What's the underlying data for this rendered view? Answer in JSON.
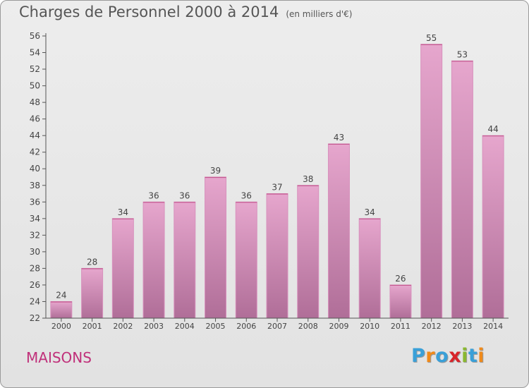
{
  "header": {
    "title": "Charges de Personnel 2000 à 2014",
    "subtitle": "(en milliers d'€)"
  },
  "footer": {
    "commune": "MAISONS",
    "brand": {
      "text": "Proxiti",
      "letters": [
        {
          "ch": "P",
          "color": "#3aa0d8"
        },
        {
          "ch": "r",
          "color": "#f08a1a"
        },
        {
          "ch": "o",
          "color": "#3aa0d8"
        },
        {
          "ch": "x",
          "color": "#d8242a"
        },
        {
          "ch": "i",
          "color": "#8ab830"
        },
        {
          "ch": "t",
          "color": "#3aa0d8"
        },
        {
          "ch": "i",
          "color": "#f08a1a"
        }
      ]
    }
  },
  "chart_data": {
    "type": "bar",
    "title": "Charges de Personnel 2000 à 2014",
    "subtitle": "(en milliers d'€)",
    "xlabel": "",
    "ylabel": "",
    "categories": [
      "2000",
      "2001",
      "2002",
      "2003",
      "2004",
      "2005",
      "2006",
      "2007",
      "2008",
      "2009",
      "2010",
      "2011",
      "2012",
      "2013",
      "2014"
    ],
    "values": [
      24,
      28,
      34,
      36,
      36,
      39,
      36,
      37,
      38,
      43,
      34,
      26,
      55,
      53,
      44
    ],
    "ylim": [
      22,
      56
    ],
    "yticks": [
      22,
      24,
      26,
      28,
      30,
      32,
      34,
      36,
      38,
      40,
      42,
      44,
      46,
      48,
      50,
      52,
      54,
      56
    ],
    "grid": false,
    "legend": "none",
    "colors": {
      "bar_top": "#e6a6cd",
      "bar_bottom": "#b06e98",
      "bar_edge": "#d891bd",
      "axis": "#555555",
      "label": "#444444"
    }
  }
}
